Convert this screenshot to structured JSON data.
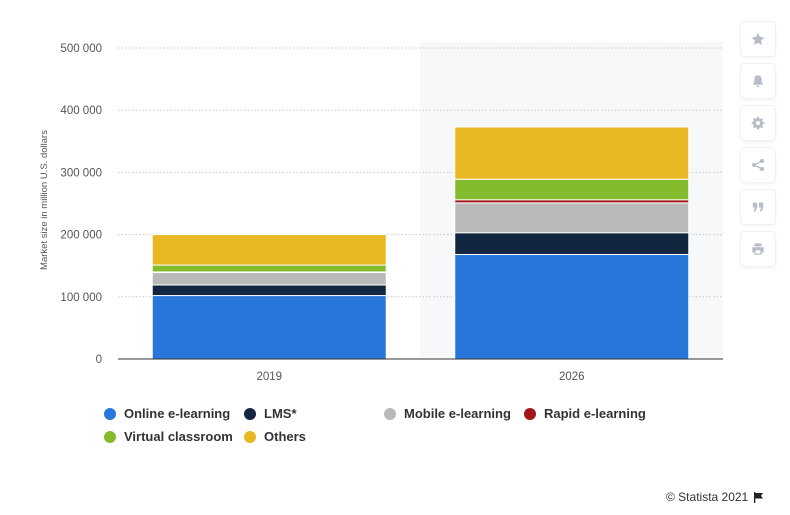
{
  "chart_data": {
    "type": "bar",
    "stacked": true,
    "categories": [
      "2019",
      "2026"
    ],
    "ylabel": "Market size in million U.S. dollars",
    "ylim": [
      0,
      500000
    ],
    "yticks": [
      "0",
      "100 000",
      "200 000",
      "300 000",
      "400 000",
      "500 000"
    ],
    "grid": true,
    "legend_position": "bottom",
    "series": [
      {
        "name": "Online e-learning",
        "color": "#2a77dc",
        "values": [
          102000,
          168000
        ]
      },
      {
        "name": "LMS*",
        "color": "#13263f",
        "values": [
          17000,
          35000
        ]
      },
      {
        "name": "Mobile e-learning",
        "color": "#b9b9b9",
        "values": [
          20000,
          48000
        ]
      },
      {
        "name": "Rapid e-learning",
        "color": "#a31519",
        "values": [
          1000,
          5000
        ]
      },
      {
        "name": "Virtual classroom",
        "color": "#84bb2c",
        "values": [
          11000,
          33000
        ]
      },
      {
        "name": "Others",
        "color": "#e9b724",
        "values": [
          49000,
          84000
        ]
      }
    ]
  },
  "sidebar": {
    "buttons": [
      {
        "icon": "star-icon"
      },
      {
        "icon": "bell-icon"
      },
      {
        "icon": "gear-icon"
      },
      {
        "icon": "share-icon"
      },
      {
        "icon": "quote-icon"
      },
      {
        "icon": "print-icon"
      }
    ]
  },
  "credit": {
    "text": "© Statista 2021",
    "icon": "flag-icon"
  }
}
